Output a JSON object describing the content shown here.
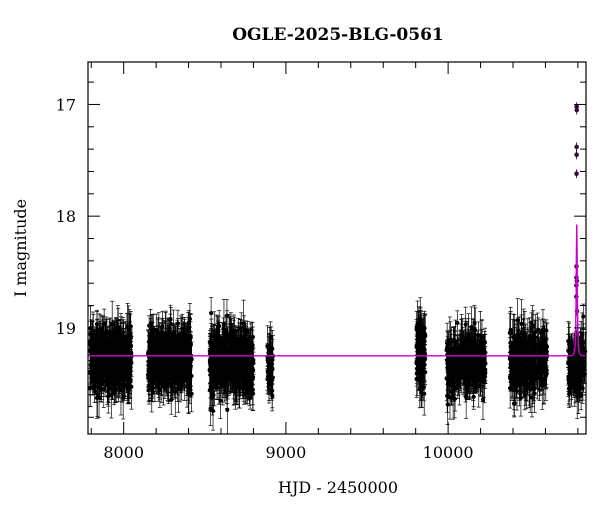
{
  "chart_data": {
    "type": "scatter",
    "title": "OGLE-2025-BLG-0561",
    "xlabel": "HJD - 2450000",
    "ylabel": "I magnitude",
    "xlim": [
      7780,
      10850
    ],
    "ylim": [
      19.95,
      16.62
    ],
    "y_inverted": true,
    "x_ticks": [
      8000,
      9000,
      10000
    ],
    "y_ticks": [
      17,
      18,
      19
    ],
    "grid": false,
    "colors": {
      "points": "#000000",
      "model": "#cc00cc"
    },
    "baseline_magnitude": 19.25,
    "seasons": [
      {
        "x_range": [
          7790,
          8050
        ],
        "y_mean": 19.28,
        "n": 520
      },
      {
        "x_range": [
          8150,
          8420
        ],
        "y_mean": 19.28,
        "n": 520
      },
      {
        "x_range": [
          8530,
          8800
        ],
        "y_mean": 19.3,
        "n": 540
      },
      {
        "x_range": [
          8885,
          8920
        ],
        "y_mean": 19.32,
        "n": 50
      },
      {
        "x_range": [
          9805,
          9860
        ],
        "y_mean": 19.22,
        "n": 120
      },
      {
        "x_range": [
          9990,
          10230
        ],
        "y_mean": 19.3,
        "n": 320
      },
      {
        "x_range": [
          10380,
          10610
        ],
        "y_mean": 19.3,
        "n": 320
      },
      {
        "x_range": [
          10740,
          10845
        ],
        "y_mean": 19.3,
        "n": 160
      }
    ],
    "model": {
      "t0": 10793,
      "peak_magnitude": 17.0,
      "baseline": 19.25
    },
    "event_points": [
      {
        "x": 10792.5,
        "y": 17.02
      },
      {
        "x": 10793.0,
        "y": 17.05
      },
      {
        "x": 10792.2,
        "y": 17.38
      },
      {
        "x": 10792.0,
        "y": 17.45
      },
      {
        "x": 10791.6,
        "y": 17.62
      },
      {
        "x": 10791.2,
        "y": 18.45
      },
      {
        "x": 10791.0,
        "y": 18.55
      },
      {
        "x": 10790.6,
        "y": 18.62
      },
      {
        "x": 10790.3,
        "y": 18.72
      },
      {
        "x": 10794.0,
        "y": 18.58
      },
      {
        "x": 10794.5,
        "y": 18.85
      },
      {
        "x": 10795.2,
        "y": 19.05
      }
    ]
  }
}
